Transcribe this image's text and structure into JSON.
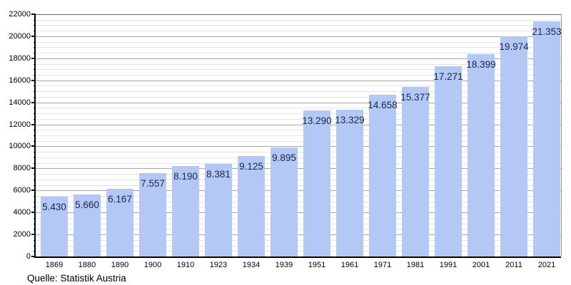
{
  "chart_data": {
    "type": "bar",
    "title": "",
    "xlabel": "",
    "ylabel": "",
    "categories": [
      "1869",
      "1880",
      "1890",
      "1900",
      "1910",
      "1923",
      "1934",
      "1939",
      "1951",
      "1961",
      "1971",
      "1981",
      "1991",
      "2001",
      "2011",
      "2021"
    ],
    "values": [
      5430,
      5660,
      6167,
      7557,
      8190,
      8381,
      9125,
      9895,
      13290,
      13329,
      14658,
      15377,
      17271,
      18399,
      19974,
      21353
    ],
    "value_labels": [
      "5.430",
      "5.660",
      "6.167",
      "7.557",
      "8.190",
      "8.381",
      "9.125",
      "9.895",
      "13.290",
      "13.329",
      "14.658",
      "15.377",
      "17.271",
      "18.399",
      "19.974",
      "21.353"
    ],
    "ylim": [
      0,
      22000
    ],
    "ytick_interval": 2000,
    "minor_tick_interval": 500,
    "ytick_labels": [
      "0",
      "2000",
      "4000",
      "6000",
      "8000",
      "10000",
      "12000",
      "14000",
      "16000",
      "18000",
      "20000",
      "22000"
    ],
    "grid": "on",
    "legend": "none",
    "colors": {
      "bar_fill": "#b4c8f5",
      "value_label": "#1c2545",
      "major_grid": "#a6a6a6",
      "minor_grid": "#e4e4e4",
      "axis": "#000000",
      "frame_top": "#666666",
      "frame_right": "#999999",
      "tick_label": "#000000",
      "background": "#ffffff"
    }
  },
  "source": {
    "text": "Quelle: Statistik Austria"
  }
}
